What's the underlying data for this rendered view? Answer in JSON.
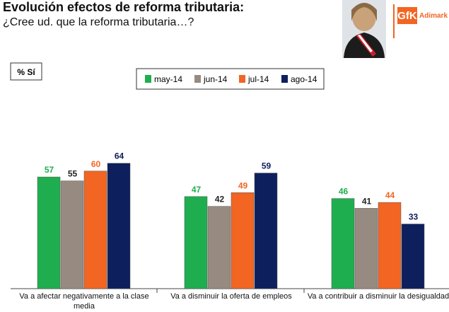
{
  "chart_data": {
    "type": "bar",
    "title": "Evolución efectos de reforma tributaria:",
    "subtitle": "¿Cree ud. que la reforma tributaria…?",
    "unit_label": "% Sí",
    "categories": [
      "Va a afectar negativamente a la clase media",
      "Va a disminuir la oferta de empleos",
      "Va a contribuir a disminuir la desigualdad"
    ],
    "series": [
      {
        "name": "may-14",
        "color": "#1fae4f",
        "label_color": "#1fae4f",
        "values": [
          57,
          47,
          46
        ]
      },
      {
        "name": "jun-14",
        "color": "#978b81",
        "label_color": "#222222",
        "values": [
          55,
          42,
          41
        ]
      },
      {
        "name": "jul-14",
        "color": "#f26522",
        "label_color": "#f26522",
        "values": [
          60,
          49,
          44
        ]
      },
      {
        "name": "ago-14",
        "color": "#0d1f5c",
        "label_color": "#0d1f5c",
        "values": [
          64,
          59,
          33
        ]
      }
    ]
  },
  "logo": {
    "brand": "GfK",
    "name": "Adimark"
  }
}
